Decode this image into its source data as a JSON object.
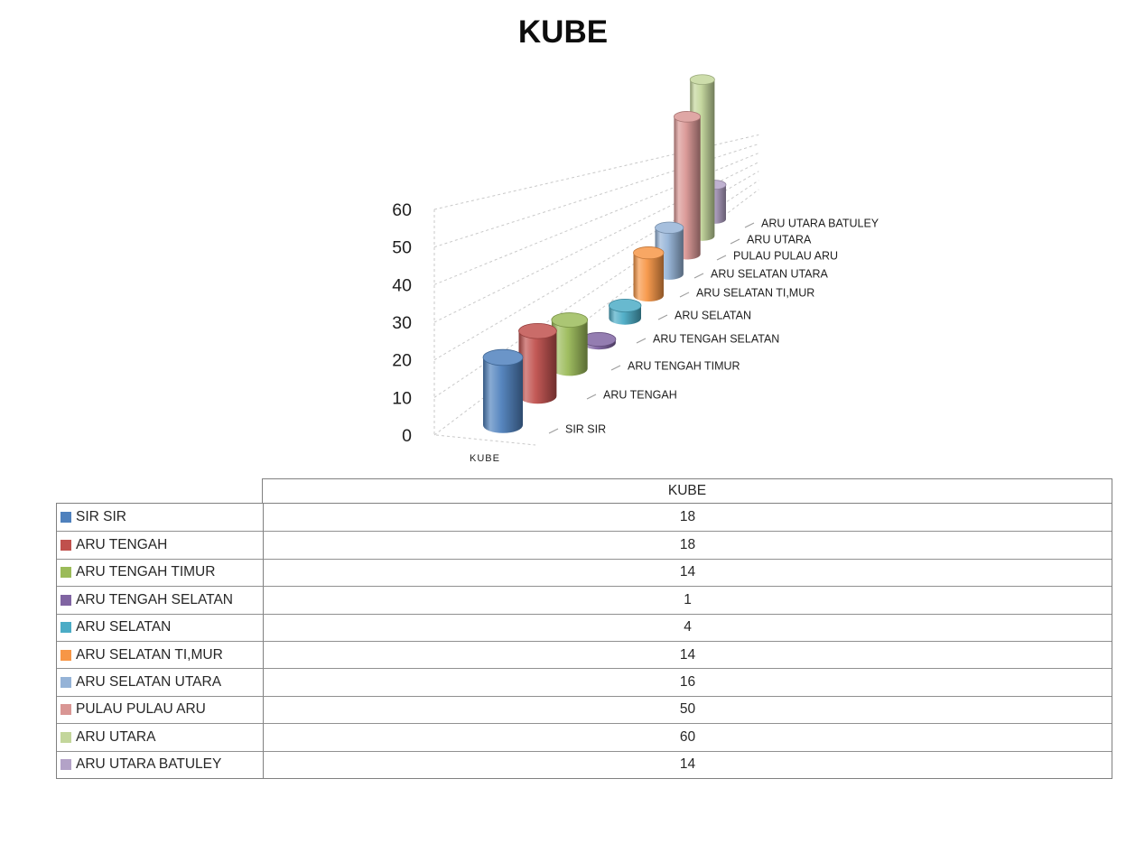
{
  "chart_data": {
    "type": "bar",
    "variant": "3d-cylinder-column",
    "title": "KUBE",
    "categories": [
      "SIR SIR",
      "ARU TENGAH",
      "ARU TENGAH TIMUR",
      "ARU TENGAH SELATAN",
      "ARU SELATAN",
      "ARU SELATAN TI,MUR",
      "ARU SELATAN UTARA",
      "PULAU PULAU ARU",
      "ARU UTARA",
      "ARU UTARA BATULEY"
    ],
    "series": [
      {
        "name": "KUBE",
        "values": [
          18,
          18,
          14,
          1,
          4,
          14,
          16,
          50,
          60,
          14
        ]
      }
    ],
    "series_axis_label": "KUBE",
    "xlabel": "",
    "ylabel": "",
    "ylim": [
      0,
      60
    ],
    "y_ticks": [
      0,
      10,
      20,
      30,
      40,
      50,
      60
    ],
    "grid": true,
    "grid_style": "dashed",
    "legend_position": "none",
    "colors": [
      "#4F81BD",
      "#C0504D",
      "#9BBB59",
      "#8064A2",
      "#4BACC6",
      "#F79646",
      "#95B3D7",
      "#D99694",
      "#C3D69B",
      "#B3A2C7"
    ],
    "gridline_color": "#c9c9c9",
    "text_color": "#1f1f1f"
  },
  "table": {
    "header": "KUBE",
    "rows": [
      {
        "label": "SIR SIR",
        "value": 18,
        "color": "#4F81BD"
      },
      {
        "label": "ARU TENGAH",
        "value": 18,
        "color": "#C0504D"
      },
      {
        "label": "ARU TENGAH TIMUR",
        "value": 14,
        "color": "#9BBB59"
      },
      {
        "label": "ARU TENGAH SELATAN",
        "value": 1,
        "color": "#8064A2"
      },
      {
        "label": "ARU SELATAN",
        "value": 4,
        "color": "#4BACC6"
      },
      {
        "label": "ARU SELATAN TI,MUR",
        "value": 14,
        "color": "#F79646"
      },
      {
        "label": "ARU SELATAN UTARA",
        "value": 16,
        "color": "#95B3D7"
      },
      {
        "label": "PULAU PULAU ARU",
        "value": 50,
        "color": "#D99694"
      },
      {
        "label": "ARU UTARA",
        "value": 60,
        "color": "#C3D69B"
      },
      {
        "label": "ARU UTARA BATULEY",
        "value": 14,
        "color": "#B3A2C7"
      }
    ]
  }
}
